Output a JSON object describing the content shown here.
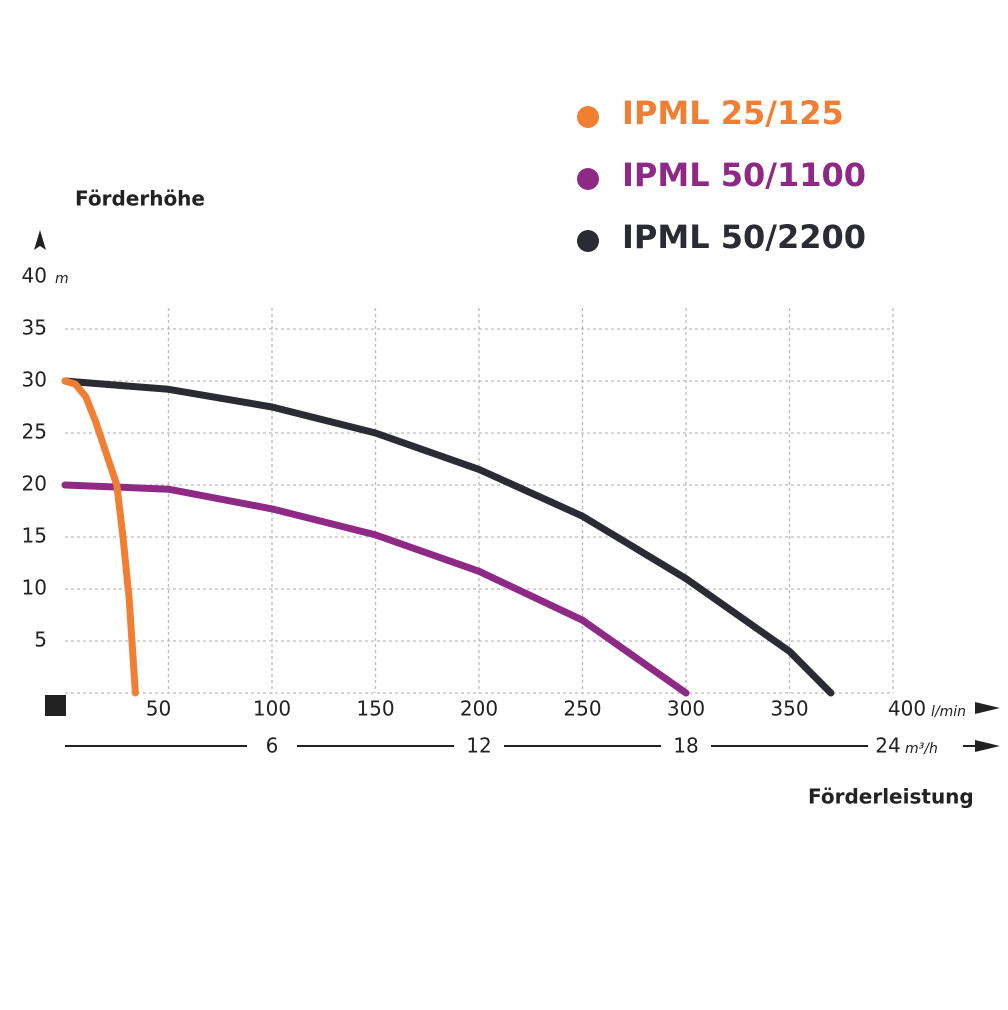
{
  "chart_data": {
    "type": "line",
    "y_label": "Förderhöhe",
    "y_unit": "m",
    "x_label": "Förderleistung",
    "x_unit": "l/min",
    "x2_unit": "m³/h",
    "xlim": [
      0,
      400
    ],
    "xticks": [
      50,
      100,
      150,
      200,
      250,
      300,
      350,
      400
    ],
    "x2lim": [
      0,
      24
    ],
    "x2ticks": [
      6,
      12,
      18,
      24
    ],
    "ylim": [
      0,
      40
    ],
    "yticks": [
      5,
      10,
      15,
      20,
      25,
      30,
      35,
      40
    ],
    "grid": true,
    "series": [
      {
        "name": "IPML 25/125",
        "color": "#f07f33",
        "x": [
          0,
          5,
          10,
          15,
          20,
          25,
          28,
          31,
          34
        ],
        "values": [
          30,
          29.7,
          28.5,
          26,
          23,
          20,
          15,
          9,
          0
        ]
      },
      {
        "name": "IPML 50/1100",
        "color": "#8e2a85",
        "x": [
          0,
          50,
          100,
          150,
          200,
          250,
          300
        ],
        "values": [
          20,
          19.6,
          17.7,
          15.2,
          11.7,
          7,
          0
        ]
      },
      {
        "name": "IPML 50/2200",
        "color": "#2b2b33",
        "x": [
          0,
          50,
          100,
          150,
          200,
          250,
          300,
          350,
          370
        ],
        "values": [
          30,
          29.2,
          27.5,
          25,
          21.5,
          17,
          11,
          4,
          0
        ]
      }
    ]
  }
}
